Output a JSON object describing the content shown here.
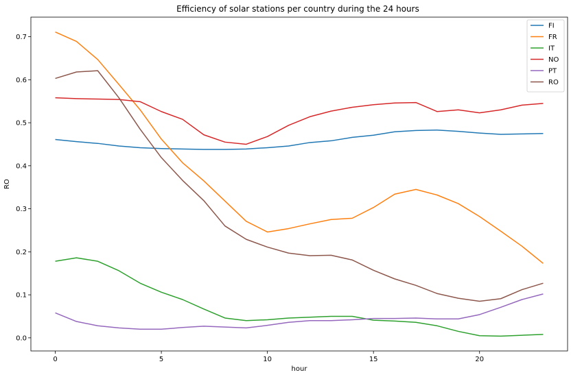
{
  "chart_data": {
    "type": "line",
    "title": "Efficiency of solar stations per country during the 24 hours",
    "xlabel": "hour",
    "ylabel": "RO",
    "xlim": [
      -1.15,
      24.15
    ],
    "ylim": [
      -0.0305,
      0.7455
    ],
    "xticks": [
      0,
      5,
      10,
      15,
      20
    ],
    "yticks": [
      0.0,
      0.1,
      0.2,
      0.3,
      0.4,
      0.5,
      0.6,
      0.7
    ],
    "xtick_labels": [
      "0",
      "5",
      "10",
      "15",
      "20"
    ],
    "ytick_labels": [
      "0.0",
      "0.1",
      "0.2",
      "0.3",
      "0.4",
      "0.5",
      "0.6",
      "0.7"
    ],
    "grid": false,
    "legend_position": "top-right",
    "x": [
      0,
      1,
      2,
      3,
      4,
      5,
      6,
      7,
      8,
      9,
      10,
      11,
      12,
      13,
      14,
      15,
      16,
      17,
      18,
      19,
      20,
      21,
      22,
      23
    ],
    "series": [
      {
        "name": "FI",
        "color": "#1f77b4",
        "values": [
          0.461,
          0.456,
          0.452,
          0.446,
          0.442,
          0.44,
          0.439,
          0.438,
          0.438,
          0.439,
          0.442,
          0.446,
          0.454,
          0.458,
          0.466,
          0.471,
          0.479,
          0.482,
          0.483,
          0.48,
          0.476,
          0.473,
          0.474,
          0.475
        ]
      },
      {
        "name": "FR",
        "color": "#ff7f0e",
        "values": [
          0.711,
          0.689,
          0.647,
          0.589,
          0.53,
          0.462,
          0.407,
          0.365,
          0.318,
          0.271,
          0.246,
          0.254,
          0.265,
          0.275,
          0.278,
          0.303,
          0.334,
          0.345,
          0.332,
          0.312,
          0.282,
          0.248,
          0.213,
          0.173
        ]
      },
      {
        "name": "IT",
        "color": "#2ca02c",
        "values": [
          0.178,
          0.186,
          0.178,
          0.156,
          0.127,
          0.106,
          0.089,
          0.067,
          0.046,
          0.04,
          0.042,
          0.046,
          0.048,
          0.05,
          0.05,
          0.041,
          0.039,
          0.036,
          0.028,
          0.015,
          0.005,
          0.004,
          0.006,
          0.008
        ]
      },
      {
        "name": "NO",
        "color": "#d62728",
        "values": [
          0.558,
          0.556,
          0.555,
          0.554,
          0.549,
          0.526,
          0.508,
          0.472,
          0.455,
          0.45,
          0.468,
          0.494,
          0.514,
          0.527,
          0.536,
          0.542,
          0.546,
          0.547,
          0.526,
          0.53,
          0.523,
          0.53,
          0.541,
          0.545
        ]
      },
      {
        "name": "PT",
        "color": "#9467bd",
        "values": [
          0.058,
          0.038,
          0.028,
          0.023,
          0.02,
          0.02,
          0.024,
          0.027,
          0.025,
          0.023,
          0.029,
          0.036,
          0.04,
          0.04,
          0.042,
          0.045,
          0.045,
          0.046,
          0.044,
          0.044,
          0.054,
          0.071,
          0.089,
          0.102
        ]
      },
      {
        "name": "RO",
        "color": "#8c564b",
        "values": [
          0.603,
          0.618,
          0.621,
          0.558,
          0.485,
          0.419,
          0.366,
          0.319,
          0.26,
          0.229,
          0.211,
          0.197,
          0.191,
          0.192,
          0.181,
          0.157,
          0.137,
          0.122,
          0.103,
          0.092,
          0.085,
          0.091,
          0.112,
          0.127
        ]
      }
    ]
  }
}
